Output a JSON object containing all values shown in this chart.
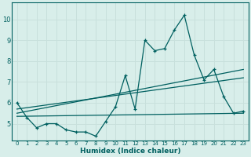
{
  "xlabel": "Humidex (Indice chaleur)",
  "xlim": [
    -0.5,
    23.5
  ],
  "ylim": [
    4.2,
    10.8
  ],
  "bg_color": "#d8eeea",
  "grid_color": "#c8e0dc",
  "line_color": "#006060",
  "xtick_labels": [
    "0",
    "1",
    "2",
    "3",
    "4",
    "5",
    "6",
    "7",
    "8",
    "9",
    "10",
    "11",
    "12",
    "13",
    "14",
    "15",
    "16",
    "17",
    "18",
    "19",
    "20",
    "21",
    "22",
    "23"
  ],
  "xtick_vals": [
    0,
    1,
    2,
    3,
    4,
    5,
    6,
    7,
    8,
    9,
    10,
    11,
    12,
    13,
    14,
    15,
    16,
    17,
    18,
    19,
    20,
    21,
    22,
    23
  ],
  "ytick_vals": [
    5,
    6,
    7,
    8,
    9,
    10
  ],
  "series1_x": [
    0,
    1,
    2,
    3,
    4,
    5,
    6,
    7,
    8,
    9,
    10,
    11,
    12,
    13,
    14,
    15,
    16,
    17,
    18,
    19,
    20,
    21,
    22,
    23
  ],
  "series1_y": [
    6.0,
    5.3,
    4.8,
    5.0,
    5.0,
    4.7,
    4.6,
    4.6,
    4.4,
    5.1,
    5.8,
    7.3,
    5.7,
    9.0,
    8.5,
    8.6,
    9.5,
    10.2,
    8.3,
    7.1,
    7.6,
    6.3,
    5.5,
    5.6
  ],
  "line2_x": [
    0,
    23
  ],
  "line2_y": [
    5.5,
    7.6
  ],
  "line3_x": [
    0,
    23
  ],
  "line3_y": [
    5.35,
    5.5
  ],
  "line4_x": [
    0,
    23
  ],
  "line4_y": [
    5.7,
    7.2
  ]
}
